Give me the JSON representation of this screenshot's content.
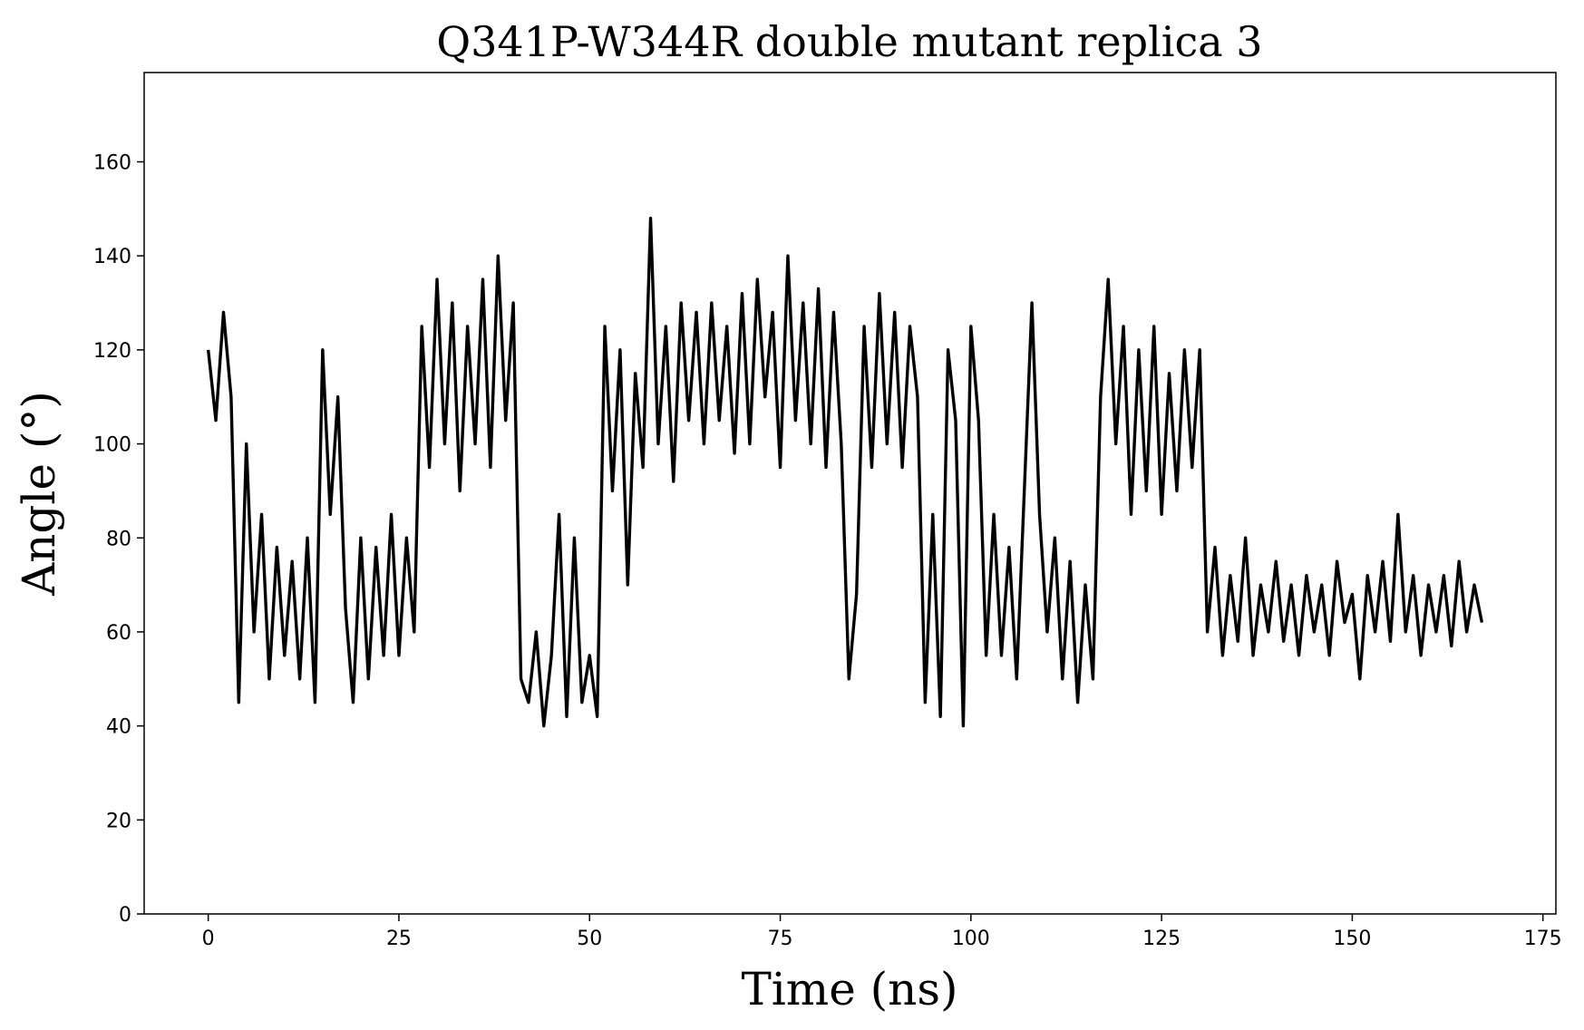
{
  "chart_data": {
    "type": "line",
    "title": "Q341P-W344R double mutant replica 3",
    "xlabel": "Time (ns)",
    "ylabel": "Angle (°)",
    "x": [
      0,
      1,
      2,
      3,
      4,
      5,
      6,
      7,
      8,
      9,
      10,
      11,
      12,
      13,
      14,
      15,
      16,
      17,
      18,
      19,
      20,
      21,
      22,
      23,
      24,
      25,
      26,
      27,
      28,
      29,
      30,
      31,
      32,
      33,
      34,
      35,
      36,
      37,
      38,
      39,
      40,
      41,
      42,
      43,
      44,
      45,
      46,
      47,
      48,
      49,
      50,
      51,
      52,
      53,
      54,
      55,
      56,
      57,
      58,
      59,
      60,
      61,
      62,
      63,
      64,
      65,
      66,
      67,
      68,
      69,
      70,
      71,
      72,
      73,
      74,
      75,
      76,
      77,
      78,
      79,
      80,
      81,
      82,
      83,
      84,
      85,
      86,
      87,
      88,
      89,
      90,
      91,
      92,
      93,
      94,
      95,
      96,
      97,
      98,
      99,
      100,
      101,
      102,
      103,
      104,
      105,
      106,
      107,
      108,
      109,
      110,
      111,
      112,
      113,
      114,
      115,
      116,
      117,
      118,
      119,
      120,
      121,
      122,
      123,
      124,
      125,
      126,
      127,
      128,
      129,
      130,
      131,
      132,
      133,
      134,
      135,
      136,
      137,
      138,
      139,
      140,
      141,
      142,
      143,
      144,
      145,
      146,
      147,
      148,
      149,
      150,
      151,
      152,
      153,
      154,
      155,
      156,
      157,
      158,
      159,
      160,
      161,
      162,
      163,
      164,
      165,
      166,
      167
    ],
    "series": [
      {
        "name": "Angle",
        "color": "#000000",
        "values": [
          120,
          105,
          128,
          110,
          45,
          100,
          60,
          85,
          50,
          78,
          55,
          75,
          50,
          80,
          45,
          120,
          85,
          110,
          65,
          45,
          80,
          50,
          78,
          55,
          85,
          55,
          80,
          60,
          125,
          95,
          135,
          100,
          130,
          90,
          125,
          100,
          135,
          95,
          140,
          105,
          130,
          50,
          45,
          60,
          40,
          55,
          85,
          42,
          80,
          45,
          55,
          42,
          125,
          90,
          120,
          70,
          115,
          95,
          148,
          100,
          125,
          92,
          130,
          105,
          128,
          100,
          130,
          105,
          125,
          98,
          132,
          100,
          135,
          110,
          128,
          95,
          140,
          105,
          130,
          100,
          133,
          95,
          128,
          100,
          50,
          68,
          125,
          95,
          132,
          100,
          128,
          95,
          125,
          110,
          45,
          85,
          42,
          120,
          105,
          40,
          125,
          105,
          55,
          85,
          55,
          78,
          50,
          90,
          130,
          85,
          60,
          80,
          50,
          75,
          45,
          70,
          50,
          110,
          135,
          100,
          125,
          85,
          120,
          90,
          125,
          85,
          115,
          90,
          120,
          95,
          120,
          60,
          78,
          55,
          72,
          58,
          80,
          55,
          70,
          60,
          75,
          58,
          70,
          55,
          72,
          60,
          70,
          55,
          75,
          62,
          68,
          50,
          72,
          60,
          75,
          58,
          85,
          60,
          72,
          55,
          70,
          60,
          72,
          57,
          75,
          60,
          70,
          62
        ]
      }
    ],
    "xlim": [
      -8.4,
      176.7
    ],
    "xticks": [
      0,
      25,
      50,
      75,
      100,
      125,
      150,
      175
    ],
    "ylim": [
      0,
      179
    ],
    "yticks": [
      0,
      20,
      40,
      60,
      80,
      100,
      120,
      140,
      160
    ],
    "grid": false
  }
}
